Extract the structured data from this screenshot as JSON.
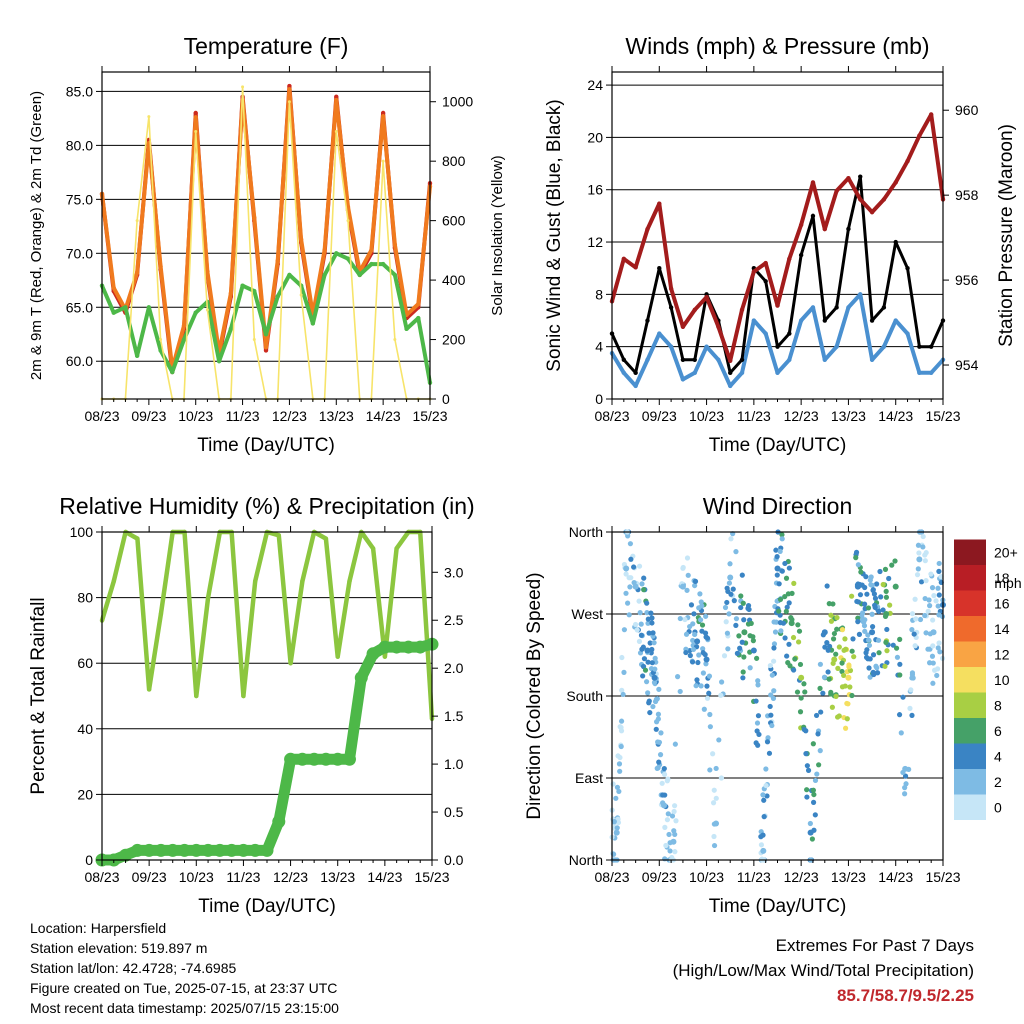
{
  "x_ticks": [
    "08/23",
    "09/23",
    "10/23",
    "11/23",
    "12/23",
    "13/23",
    "14/23",
    "15/23"
  ],
  "grid_lines": "horizontal",
  "chart_data": [
    {
      "id": "temperature",
      "type": "line",
      "title": "Temperature (F)",
      "xlabel": "Time (Day/UTC)",
      "ylabel": "2m & 9m T (Red, Orange) & 2m Td (Green)",
      "y2label": "Solar Insolation (Yellow)",
      "ylim": [
        56.5,
        86.8
      ],
      "y_ticks": [
        60.0,
        65.0,
        70.0,
        75.0,
        80.0,
        85.0
      ],
      "y2lim": [
        0,
        1100
      ],
      "y2_ticks": [
        0,
        200,
        400,
        600,
        800,
        1000
      ],
      "x": [
        0,
        0.25,
        0.5,
        0.75,
        1,
        1.25,
        1.5,
        1.75,
        2,
        2.25,
        2.5,
        2.75,
        3,
        3.25,
        3.5,
        3.75,
        4,
        4.25,
        4.5,
        4.75,
        5,
        5.25,
        5.5,
        5.75,
        6,
        6.25,
        6.5,
        6.75,
        7
      ],
      "series": [
        {
          "name": "2m T",
          "color": "#cc2a1f",
          "values": [
            75.5,
            66.5,
            64.5,
            68,
            80.5,
            68.5,
            59,
            63,
            83,
            68,
            60.5,
            66,
            84.5,
            73,
            61,
            69,
            85.5,
            71,
            64,
            70,
            84.5,
            74,
            68,
            70,
            83,
            70.5,
            64,
            65,
            76.5
          ]
        },
        {
          "name": "9m T",
          "color": "#f07a1e",
          "values": [
            75.5,
            66.8,
            64.8,
            68.2,
            80.2,
            68.8,
            59.3,
            63.3,
            82.6,
            68.3,
            60.8,
            66.3,
            84.2,
            73.3,
            61.3,
            69.3,
            85.2,
            71.3,
            64.3,
            70.3,
            84.2,
            74.3,
            68.3,
            70.3,
            82.7,
            70.8,
            64.3,
            65.3,
            76.2
          ]
        },
        {
          "name": "2m Td",
          "color": "#4db848",
          "values": [
            67,
            64.5,
            65,
            60.5,
            65,
            61,
            59,
            62,
            64.5,
            65.5,
            60,
            63,
            67,
            66.5,
            62.5,
            66,
            68,
            67,
            63.5,
            68,
            70,
            69.5,
            68,
            69,
            69,
            68,
            63,
            64,
            58
          ]
        },
        {
          "name": "Solar Insolation",
          "color": "#f7e46a",
          "axis": "right",
          "values": [
            0,
            0,
            0,
            600,
            950,
            200,
            0,
            0,
            900,
            300,
            0,
            0,
            1050,
            200,
            0,
            0,
            1000,
            350,
            0,
            0,
            900,
            600,
            0,
            0,
            800,
            200,
            0,
            0,
            0
          ]
        }
      ]
    },
    {
      "id": "winds",
      "type": "line",
      "title": "Winds (mph) & Pressure (mb)",
      "xlabel": "Time (Day/UTC)",
      "ylabel": "Sonic Wind & Gust (Blue, Black)",
      "y2label": "Station Pressure (Maroon)",
      "ylim": [
        0,
        25
      ],
      "y_ticks": [
        0,
        4,
        8,
        12,
        16,
        20,
        24
      ],
      "y2lim": [
        953.2,
        960.9
      ],
      "y2_ticks": [
        954,
        956,
        958,
        960
      ],
      "x": [
        0,
        0.25,
        0.5,
        0.75,
        1,
        1.25,
        1.5,
        1.75,
        2,
        2.25,
        2.5,
        2.75,
        3,
        3.25,
        3.5,
        3.75,
        4,
        4.25,
        4.5,
        4.75,
        5,
        5.25,
        5.5,
        5.75,
        6,
        6.25,
        6.5,
        6.75,
        7
      ],
      "series": [
        {
          "name": "Sonic Wind",
          "color": "#4a90d0",
          "values": [
            3.5,
            2,
            1,
            3,
            5,
            4,
            1.5,
            2,
            4,
            3,
            1,
            2,
            6,
            5,
            2,
            3,
            6,
            7,
            3,
            4,
            7,
            8,
            3,
            4,
            6,
            5,
            2,
            2,
            3
          ]
        },
        {
          "name": "Gust",
          "color": "#000000",
          "values": [
            5,
            3,
            2,
            6,
            10,
            7,
            3,
            3,
            8,
            6,
            2,
            3,
            10,
            9,
            4,
            5,
            11,
            14,
            6,
            7,
            13,
            17,
            6,
            7,
            12,
            10,
            4,
            4,
            6
          ]
        },
        {
          "name": "Station Pressure",
          "color": "#a31c1c",
          "axis": "right",
          "values": [
            955.5,
            956.5,
            956.3,
            957.2,
            957.8,
            955.8,
            954.9,
            955.3,
            955.6,
            954.9,
            954.1,
            955.3,
            956.2,
            956.4,
            955.4,
            956.5,
            957.3,
            958.3,
            957.2,
            958.1,
            958.4,
            957.9,
            957.6,
            957.9,
            958.3,
            958.8,
            959.4,
            959.9,
            957.9
          ]
        }
      ]
    },
    {
      "id": "humidity",
      "type": "line",
      "title": "Relative Humidity (%) & Precipitation (in)",
      "xlabel": "Time (Day/UTC)",
      "ylabel": "Percent & Total Rainfall",
      "ylim": [
        0,
        100
      ],
      "y_ticks": [
        0,
        20,
        40,
        60,
        80,
        100
      ],
      "y2lim": [
        0,
        3.42
      ],
      "y2_ticks": [
        0.0,
        0.5,
        1.0,
        1.5,
        2.0,
        2.5,
        3.0
      ],
      "x": [
        0,
        0.25,
        0.5,
        0.75,
        1,
        1.25,
        1.5,
        1.75,
        2,
        2.25,
        2.5,
        2.75,
        3,
        3.25,
        3.5,
        3.75,
        4,
        4.25,
        4.5,
        4.75,
        5,
        5.25,
        5.5,
        5.75,
        6,
        6.25,
        6.5,
        6.75,
        7
      ],
      "series": [
        {
          "name": "Relative Humidity",
          "color": "#8cc63f",
          "values": [
            73,
            85,
            100,
            98,
            52,
            75,
            100,
            100,
            50,
            80,
            100,
            100,
            50,
            85,
            100,
            99,
            60,
            85,
            100,
            98,
            62,
            85,
            100,
            95,
            62,
            95,
            100,
            100,
            43
          ]
        },
        {
          "name": "Total Rainfall",
          "color": "#4db848",
          "axis": "right",
          "values": [
            0,
            0,
            0.05,
            0.1,
            0.1,
            0.1,
            0.1,
            0.1,
            0.1,
            0.1,
            0.1,
            0.1,
            0.1,
            0.1,
            0.1,
            0.4,
            1.05,
            1.05,
            1.05,
            1.05,
            1.05,
            1.05,
            1.9,
            2.15,
            2.22,
            2.22,
            2.22,
            2.22,
            2.25
          ]
        }
      ]
    },
    {
      "id": "direction",
      "type": "scatter",
      "title": "Wind Direction",
      "xlabel": "Time (Day/UTC)",
      "ylabel": "Direction (Colored By Speed)",
      "ylim": [
        0,
        360
      ],
      "y_ticks": [
        0,
        90,
        180,
        270,
        360
      ],
      "y_tick_labels": [
        "North",
        "East",
        "South",
        "West",
        "North"
      ],
      "legend_title": "mph",
      "legend_labels": [
        "0",
        "2",
        "4",
        "6",
        "8",
        "10",
        "12",
        "14",
        "16",
        "18",
        "20+"
      ],
      "legend_colors": [
        "#c6e6f7",
        "#7ebbe4",
        "#3a84c4",
        "#45a168",
        "#a8cf44",
        "#f5df60",
        "#f9a444",
        "#ef6a2c",
        "#d7332a",
        "#b81e25",
        "#8c1820"
      ],
      "legend_placement": "right",
      "x": [
        0.1,
        0.3,
        0.5,
        0.75,
        0.9,
        1.1,
        1.3,
        1.5,
        1.8,
        2.0,
        2.2,
        2.5,
        2.8,
        3.0,
        3.2,
        3.5,
        3.8,
        4.0,
        4.2,
        4.5,
        4.7,
        5.0,
        5.2,
        5.5,
        5.8,
        6.0,
        6.2,
        6.5,
        6.8,
        7.0
      ],
      "speed": [
        1,
        1,
        2,
        4,
        3,
        2,
        1,
        1,
        4,
        3,
        1,
        2,
        5,
        4,
        2,
        3,
        6,
        7,
        4,
        4,
        7,
        9,
        4,
        3,
        6,
        5,
        2,
        2,
        1,
        3
      ],
      "values": [
        30,
        320,
        300,
        230,
        200,
        60,
        20,
        300,
        240,
        220,
        40,
        310,
        250,
        230,
        10,
        320,
        260,
        200,
        30,
        250,
        220,
        200,
        300,
        250,
        270,
        300,
        100,
        330,
        250,
        280
      ]
    }
  ],
  "info": {
    "location": "Location: Harpersfield",
    "elevation": "Station elevation: 519.897 m",
    "latlon": "Station lat/lon: 42.4728; -74.6985",
    "created": "Figure created on Tue, 2025-07-15, at 23:37 UTC",
    "timestamp": "Most recent data timestamp: 2025/07/15 23:15:00"
  },
  "extremes": {
    "title": "Extremes For Past 7 Days",
    "subtitle": "(High/Low/Max Wind/Total Precipitation)",
    "values": "85.7/58.7/9.5/2.25"
  }
}
